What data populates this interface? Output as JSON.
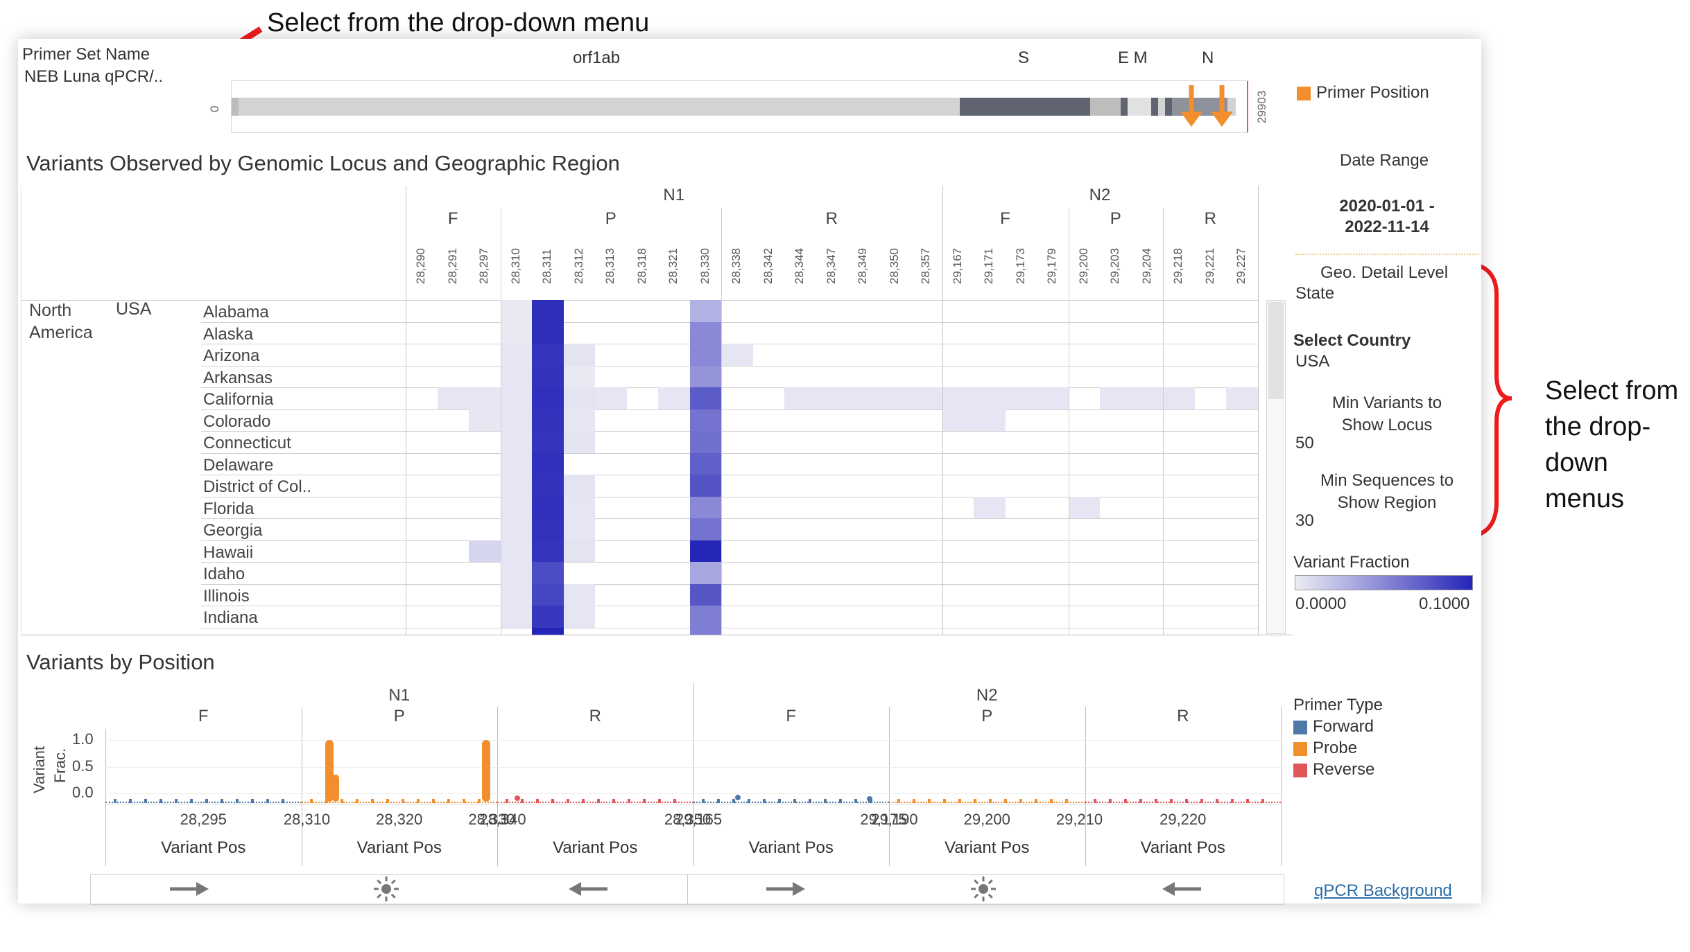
{
  "annotations": {
    "top": "Select from the drop-down menu",
    "right_lines": [
      "Select from",
      "the drop-",
      "down",
      "menus"
    ]
  },
  "primer": {
    "label": "Primer Set Name",
    "value": "NEB Luna qPCR/.."
  },
  "genome": {
    "genes": [
      "orf1ab",
      "S",
      "E M",
      "N"
    ],
    "start": "0",
    "end": "29903"
  },
  "legend_primer_position": {
    "label": "Primer Position",
    "color": "#f28e2b"
  },
  "heatmap": {
    "title": "Variants Observed by Genomic Locus and Geographic Region",
    "groups": [
      "N1",
      "N2"
    ],
    "subgroups": [
      "F",
      "P",
      "R",
      "F",
      "P",
      "R"
    ],
    "positions": [
      "28,290",
      "28,291",
      "28,297",
      "28,310",
      "28,311",
      "28,312",
      "28,313",
      "28,318",
      "28,321",
      "28,330",
      "28,338",
      "28,342",
      "28,344",
      "28,347",
      "28,349",
      "28,350",
      "28,357",
      "29,167",
      "29,171",
      "29,173",
      "29,179",
      "29,200",
      "29,203",
      "29,204",
      "29,218",
      "29,221",
      "29,227"
    ],
    "region": "North America",
    "country": "USA",
    "states": [
      "Alabama",
      "Alaska",
      "Arizona",
      "Arkansas",
      "California",
      "Colorado",
      "Connecticut",
      "Delaware",
      "District of Col..",
      "Florida",
      "Georgia",
      "Hawaii",
      "Idaho",
      "Illinois",
      "Indiana"
    ],
    "values": [
      [
        0,
        0,
        0,
        0.002,
        0.095,
        0,
        0,
        0,
        0,
        0.03,
        0,
        0,
        0,
        0,
        0,
        0,
        0,
        0,
        0,
        0,
        0,
        0,
        0,
        0,
        0,
        0,
        0
      ],
      [
        0,
        0,
        0,
        0.002,
        0.095,
        0,
        0,
        0,
        0,
        0.05,
        0,
        0,
        0,
        0,
        0,
        0,
        0,
        0,
        0,
        0,
        0,
        0,
        0,
        0,
        0,
        0,
        0
      ],
      [
        0,
        0,
        0,
        0.004,
        0.092,
        0.005,
        0,
        0,
        0,
        0.05,
        0.004,
        0,
        0,
        0,
        0,
        0,
        0,
        0,
        0,
        0,
        0,
        0,
        0,
        0,
        0,
        0,
        0
      ],
      [
        0,
        0,
        0,
        0.004,
        0.093,
        0.002,
        0,
        0,
        0,
        0.045,
        0,
        0,
        0,
        0,
        0,
        0,
        0,
        0,
        0,
        0,
        0,
        0,
        0,
        0,
        0,
        0,
        0
      ],
      [
        0,
        0.004,
        0.004,
        0.004,
        0.094,
        0.005,
        0.004,
        0,
        0.004,
        0.072,
        0,
        0,
        0.004,
        0.004,
        0.004,
        0.004,
        0.004,
        0.004,
        0.004,
        0.004,
        0.004,
        0,
        0.004,
        0.004,
        0.004,
        0,
        0.004
      ],
      [
        0,
        0,
        0.003,
        0.004,
        0.093,
        0.003,
        0,
        0,
        0,
        0.06,
        0,
        0,
        0,
        0,
        0,
        0,
        0,
        0.004,
        0.004,
        0,
        0,
        0,
        0,
        0,
        0,
        0,
        0
      ],
      [
        0,
        0,
        0,
        0.004,
        0.092,
        0.005,
        0,
        0,
        0,
        0.062,
        0,
        0,
        0,
        0,
        0,
        0,
        0,
        0,
        0,
        0,
        0,
        0,
        0,
        0,
        0,
        0,
        0
      ],
      [
        0,
        0,
        0,
        0.004,
        0.094,
        0,
        0,
        0,
        0,
        0.07,
        0,
        0,
        0,
        0,
        0,
        0,
        0,
        0,
        0,
        0,
        0,
        0,
        0,
        0,
        0,
        0,
        0
      ],
      [
        0,
        0,
        0,
        0.004,
        0.093,
        0.005,
        0,
        0,
        0,
        0.076,
        0,
        0,
        0,
        0,
        0,
        0,
        0,
        0,
        0,
        0,
        0,
        0,
        0,
        0,
        0,
        0,
        0
      ],
      [
        0,
        0,
        0,
        0.004,
        0.094,
        0.004,
        0,
        0,
        0,
        0.05,
        0,
        0,
        0,
        0,
        0,
        0,
        0,
        0,
        0.004,
        0,
        0,
        0.004,
        0,
        0,
        0,
        0,
        0
      ],
      [
        0,
        0,
        0,
        0.004,
        0.093,
        0.004,
        0,
        0,
        0,
        0.06,
        0,
        0,
        0,
        0,
        0,
        0,
        0,
        0,
        0,
        0,
        0,
        0,
        0,
        0,
        0,
        0,
        0
      ],
      [
        0,
        0,
        0.012,
        0.004,
        0.092,
        0.005,
        0,
        0,
        0,
        0.099,
        0,
        0,
        0,
        0,
        0,
        0,
        0,
        0,
        0,
        0,
        0,
        0,
        0,
        0,
        0,
        0,
        0
      ],
      [
        0,
        0,
        0,
        0.004,
        0.08,
        0,
        0,
        0,
        0,
        0.035,
        0,
        0,
        0,
        0,
        0,
        0,
        0,
        0,
        0,
        0,
        0,
        0,
        0,
        0,
        0,
        0,
        0
      ],
      [
        0,
        0,
        0,
        0.004,
        0.083,
        0.004,
        0,
        0,
        0,
        0.075,
        0,
        0,
        0,
        0,
        0,
        0,
        0,
        0,
        0,
        0,
        0,
        0,
        0,
        0,
        0,
        0,
        0
      ],
      [
        0,
        0,
        0,
        0.004,
        0.09,
        0.004,
        0,
        0,
        0,
        0.055,
        0,
        0,
        0,
        0,
        0,
        0,
        0,
        0,
        0,
        0,
        0,
        0,
        0,
        0,
        0,
        0,
        0
      ]
    ]
  },
  "controls": {
    "date_range_label": "Date Range",
    "date_range_value_1": "2020-01-01 -",
    "date_range_value_2": "2022-11-14",
    "geo_label": "Geo. Detail Level",
    "geo_value": "State",
    "country_label": "Select Country",
    "country_value": "USA",
    "minvar_label_1": "Min Variants to",
    "minvar_label_2": "Show Locus",
    "minvar_value": "50",
    "minseq_label_1": "Min Sequences to",
    "minseq_label_2": "Show Region",
    "minseq_value": "30",
    "fraction_label": "Variant Fraction",
    "fraction_min": "0.0000",
    "fraction_max": "0.1000",
    "fraction_color_low": "#ededf5",
    "fraction_color_high": "#2424b8"
  },
  "position_chart": {
    "title": "Variants by Position",
    "groups": [
      "N1",
      "N2"
    ],
    "panels": [
      {
        "label": "F",
        "ticks": [
          "28,295"
        ]
      },
      {
        "label": "P",
        "ticks": [
          "28,310",
          "28,320",
          "28,330"
        ]
      },
      {
        "label": "R",
        "ticks": [
          "28,340",
          "28,350"
        ]
      },
      {
        "label": "F",
        "ticks": [
          "29,165",
          "29,175"
        ]
      },
      {
        "label": "P",
        "ticks": [
          "29,190",
          "29,200",
          "29,210"
        ]
      },
      {
        "label": "R",
        "ticks": [
          "29,220"
        ]
      }
    ],
    "y_label_1": "Variant",
    "y_label_2": "Frac.",
    "y_ticks": [
      "1.0",
      "0.5",
      "0.0"
    ],
    "x_label": "Variant Pos"
  },
  "primer_type_legend": {
    "title": "Primer Type",
    "items": [
      {
        "label": "Forward",
        "color": "#4e79a7"
      },
      {
        "label": "Probe",
        "color": "#f28e2b"
      },
      {
        "label": "Reverse",
        "color": "#e15759"
      }
    ]
  },
  "bottom_icons": [
    "right-arrow-icon",
    "sun-icon",
    "left-arrow-icon",
    "right-arrow-icon",
    "sun-icon",
    "left-arrow-icon"
  ],
  "link": "qPCR Background"
}
